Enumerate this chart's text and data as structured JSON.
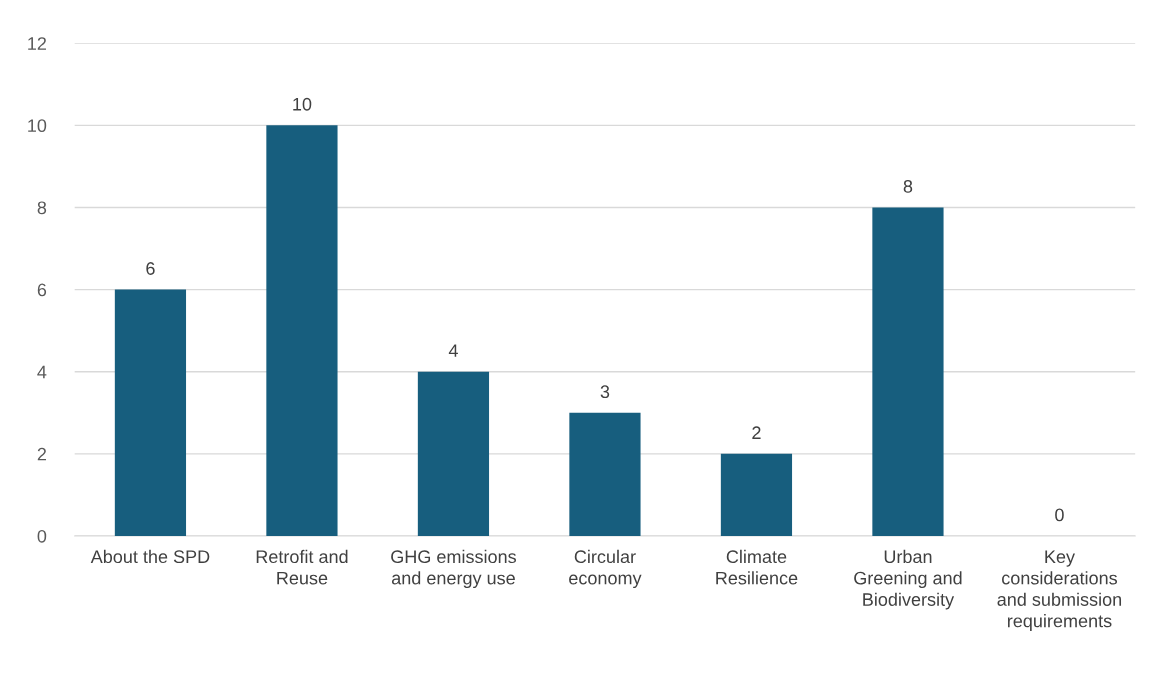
{
  "chart_data": {
    "type": "bar",
    "categories": [
      "About the SPD",
      "Retrofit and\nReuse",
      "GHG emissions\nand energy use",
      "Circular\neconomy",
      "Climate\nResilience",
      "Urban\nGreening and\nBiodiversity",
      "Key\nconsiderations\nand submission\nrequirements"
    ],
    "values": [
      6,
      10,
      4,
      3,
      2,
      8,
      0
    ],
    "color": "#175e7e",
    "ylim": [
      0,
      12
    ],
    "yticks": [
      0,
      2,
      4,
      6,
      8,
      10,
      12
    ],
    "grid": "y",
    "data_labels": true
  }
}
